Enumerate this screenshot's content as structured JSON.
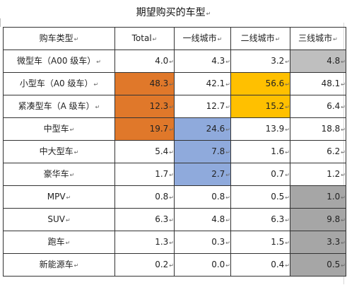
{
  "title": "期望购买的车型",
  "return_mark": "↵",
  "header": [
    "购车类型",
    "Total",
    "一线城市",
    "二线城市",
    "三线城市"
  ],
  "rows": [
    {
      "category": "微型车（A00 级车）",
      "values": [
        "4.0",
        "4.3",
        "3.2",
        "4.8"
      ]
    },
    {
      "category": "小型车（A0 级车）",
      "values": [
        "48.3",
        "42.1",
        "56.6",
        "48.1"
      ]
    },
    {
      "category": "紧凑型车（A 级车）",
      "values": [
        "12.3",
        "12.7",
        "15.2",
        "6.4"
      ]
    },
    {
      "category": "中型车",
      "values": [
        "19.7",
        "24.6",
        "13.9",
        "18.8"
      ]
    },
    {
      "category": "中大型车",
      "values": [
        "5.4",
        "7.8",
        "1.6",
        "6.2"
      ]
    },
    {
      "category": "豪华车",
      "values": [
        "1.7",
        "2.7",
        "0.7",
        "1.2"
      ]
    },
    {
      "category": "MPV",
      "values": [
        "0.8",
        "0.8",
        "0.5",
        "1.0"
      ]
    },
    {
      "category": "SUV",
      "values": [
        "6.3",
        "4.8",
        "6.3",
        "9.8"
      ]
    },
    {
      "category": "跑车",
      "values": [
        "1.3",
        "0.3",
        "1.5",
        "3.3"
      ]
    },
    {
      "category": "新能源车",
      "values": [
        "0.2",
        "0.0",
        "0.4",
        "0.5"
      ]
    }
  ],
  "highlight_colors": {
    "orange": "#e0782a",
    "gold": "#ffc000",
    "blue": "#8faadc",
    "light_gray": "#bfbfbf",
    "dark_gray": "#a6a6a6"
  },
  "highlights": {
    "orange": "Total: 小型车, 紧凑型车, 中型车",
    "gold": "二线城市: 小型车, 紧凑型车",
    "blue": "一线城市: 中型车, 中大型车, 豪华车",
    "light_gray": "三线城市: 微型车",
    "dark_gray": "三线城市: MPV, SUV, 跑车, 新能源车"
  }
}
